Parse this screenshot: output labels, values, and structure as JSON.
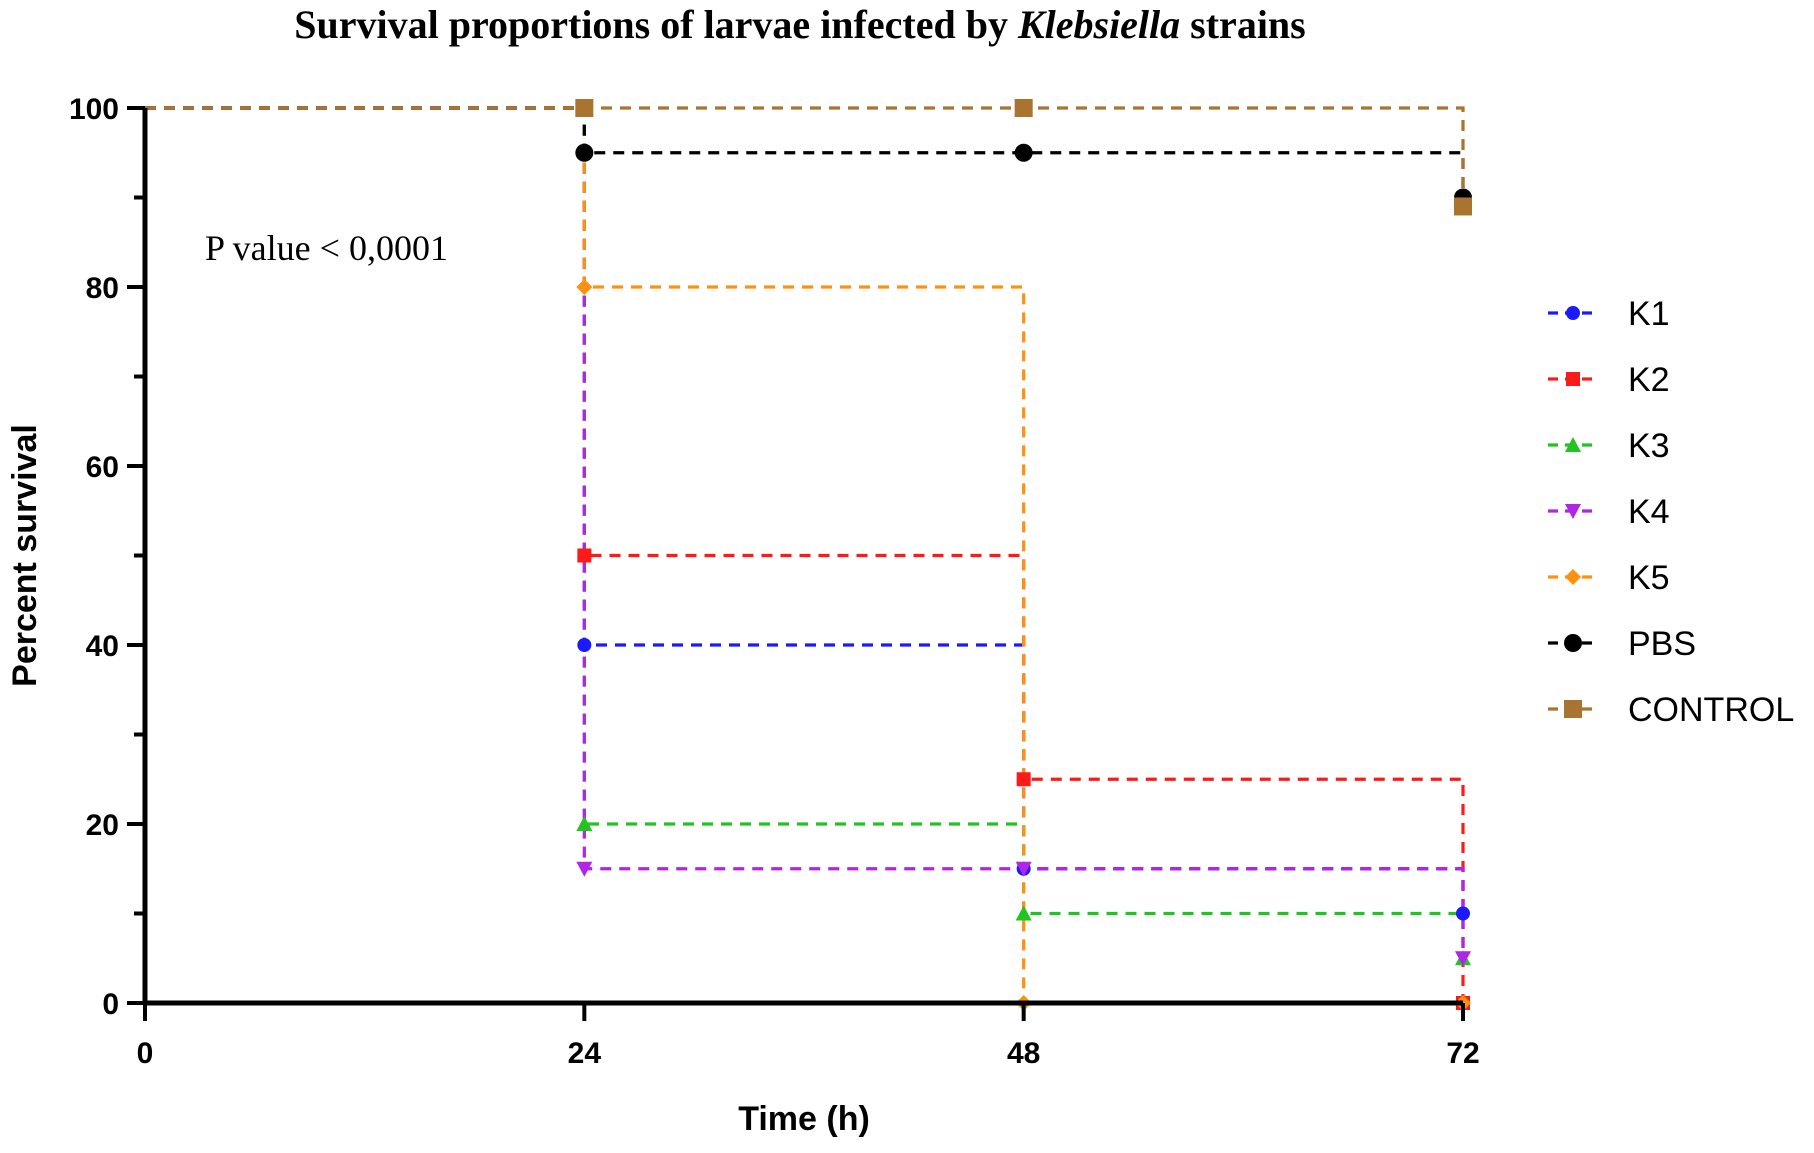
{
  "chart_data": {
    "type": "line",
    "step": true,
    "title": "Survival proportions of larvae infected by Klebsiella strains",
    "title_parts": [
      {
        "text": "Survival proportions of larvae infected by ",
        "italic": false
      },
      {
        "text": "Klebsiella",
        "italic": true
      },
      {
        "text": " strains",
        "italic": false
      }
    ],
    "xlabel": "Time (h)",
    "ylabel": "Percent survival",
    "xlim": [
      0,
      72
    ],
    "ylim": [
      0,
      100
    ],
    "xticks": [
      0,
      24,
      48,
      72
    ],
    "yticks": [
      0,
      20,
      40,
      60,
      80,
      100
    ],
    "x_tick_labels": [
      "0",
      "24",
      "48",
      "72"
    ],
    "y_tick_labels": [
      "0",
      "20",
      "40",
      "60",
      "80",
      "100"
    ],
    "grid": false,
    "legend_position": "right",
    "annotation": "P value  <  0,0001",
    "series": [
      {
        "name": "K1",
        "color": "#1a1aff",
        "marker": "circle",
        "x": [
          0,
          24,
          48,
          72
        ],
        "y": [
          100,
          40,
          15,
          10
        ]
      },
      {
        "name": "K2",
        "color": "#ff1a1a",
        "marker": "square",
        "x": [
          0,
          24,
          48,
          72
        ],
        "y": [
          100,
          50,
          25,
          0
        ]
      },
      {
        "name": "K3",
        "color": "#22c322",
        "marker": "triangle-up",
        "x": [
          0,
          24,
          48,
          72
        ],
        "y": [
          100,
          20,
          10,
          5
        ]
      },
      {
        "name": "K4",
        "color": "#b025e8",
        "marker": "triangle-down",
        "x": [
          0,
          24,
          48,
          72
        ],
        "y": [
          100,
          15,
          15,
          5
        ]
      },
      {
        "name": "K5",
        "color": "#ff9010",
        "marker": "diamond",
        "x": [
          0,
          24,
          48,
          72
        ],
        "y": [
          100,
          80,
          0,
          0
        ]
      },
      {
        "name": "PBS",
        "color": "#000000",
        "marker": "circle-large",
        "x": [
          0,
          24,
          48,
          72
        ],
        "y": [
          100,
          95,
          95,
          90
        ]
      },
      {
        "name": "CONTROL",
        "color": "#a8742f",
        "marker": "square-large",
        "x": [
          0,
          24,
          48,
          72
        ],
        "y": [
          100,
          100,
          100,
          89
        ]
      }
    ]
  }
}
